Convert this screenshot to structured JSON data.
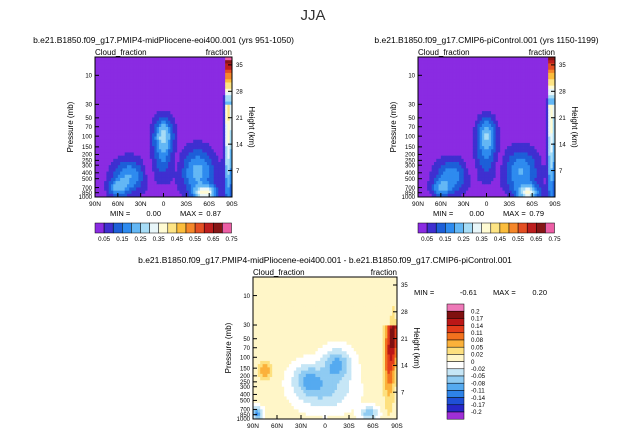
{
  "figure": {
    "title": "JJA"
  },
  "colors": {
    "abs": [
      "#8a2be2",
      "#3f2fd0",
      "#1d5fd8",
      "#2e8bef",
      "#63b7f5",
      "#a6dcf6",
      "#e8f6f9",
      "#fffbd3",
      "#fde484",
      "#fbbd3c",
      "#f5872a",
      "#e44f23",
      "#bd1e1e",
      "#861616",
      "#ec5ea5"
    ],
    "diff": [
      "#9f2fd6",
      "#2727c8",
      "#1f4fd6",
      "#2e83e8",
      "#55aaf0",
      "#8fcbf2",
      "#c6e6f6",
      "#ffffff",
      "#fff6c8",
      "#fde07f",
      "#fbb13a",
      "#f2721e",
      "#e33c1a",
      "#bb1717",
      "#7f1010",
      "#ee79b8"
    ]
  },
  "chart_data": [
    {
      "type": "heatmap",
      "title": "b.e21.B1850.f09_g17.PMIP4-midPliocene-eoi400.001 (yrs 951-1050)",
      "left_label": "Cloud_fraction",
      "right_label": "fraction",
      "xlabel": "",
      "ylabel": "Pressure (mb)",
      "ylabel_right": "Height (km)",
      "x_ticks": [
        "90N",
        "60N",
        "30N",
        "0",
        "30S",
        "60S",
        "90S"
      ],
      "y_ticks": [
        "10",
        "30",
        "50",
        "70",
        "100",
        "150",
        "200",
        "250",
        "300",
        "400",
        "500",
        "700",
        "850",
        "1000"
      ],
      "y_ticks_right": [
        "7",
        "14",
        "21",
        "28",
        "35"
      ],
      "min_label": "MIN =",
      "min": "0.00",
      "max_label": "MAX =",
      "max": "0.87"
    },
    {
      "type": "heatmap",
      "title": "b.e21.B1850.f09_g17.CMIP6-piControl.001 (yrs 1150-1199)",
      "left_label": "Cloud_fraction",
      "right_label": "fraction",
      "xlabel": "",
      "ylabel": "Pressure (mb)",
      "ylabel_right": "Height (km)",
      "x_ticks": [
        "90N",
        "60N",
        "30N",
        "0",
        "30S",
        "60S",
        "90S"
      ],
      "y_ticks": [
        "10",
        "30",
        "50",
        "70",
        "100",
        "150",
        "200",
        "250",
        "300",
        "400",
        "500",
        "700",
        "850",
        "1000"
      ],
      "y_ticks_right": [
        "7",
        "14",
        "21",
        "28",
        "35"
      ],
      "min_label": "MIN =",
      "min": "0.00",
      "max_label": "MAX =",
      "max": "0.79"
    },
    {
      "type": "heatmap",
      "title": "b.e21.B1850.f09_g17.PMIP4-midPliocene-eoi400.001 - b.e21.B1850.f09_g17.CMIP6-piControl.001",
      "left_label": "Cloud_fraction",
      "right_label": "fraction",
      "xlabel": "",
      "ylabel": "Pressure (mb)",
      "ylabel_right": "Height (km)",
      "x_ticks": [
        "90N",
        "60N",
        "30N",
        "0",
        "30S",
        "60S",
        "90S"
      ],
      "y_ticks": [
        "10",
        "30",
        "50",
        "70",
        "100",
        "150",
        "200",
        "250",
        "300",
        "400",
        "500",
        "700",
        "850",
        "1000"
      ],
      "y_ticks_right": [
        "7",
        "14",
        "21",
        "28",
        "35"
      ],
      "min_label": "MIN =",
      "min": "-0.61",
      "max_label": "MAX =",
      "max": "0.20"
    }
  ],
  "colorbar_abs": {
    "labels": [
      "0.05",
      "0.15",
      "0.25",
      "0.35",
      "0.45",
      "0.55",
      "0.65",
      "0.75"
    ]
  },
  "colorbar_diff": {
    "labels": [
      "0.2",
      "0.17",
      "0.14",
      "0.11",
      "0.08",
      "0.05",
      "0.02",
      "0",
      "-0.02",
      "-0.05",
      "-0.08",
      "-0.11",
      "-0.14",
      "-0.17",
      "-0.2"
    ]
  }
}
